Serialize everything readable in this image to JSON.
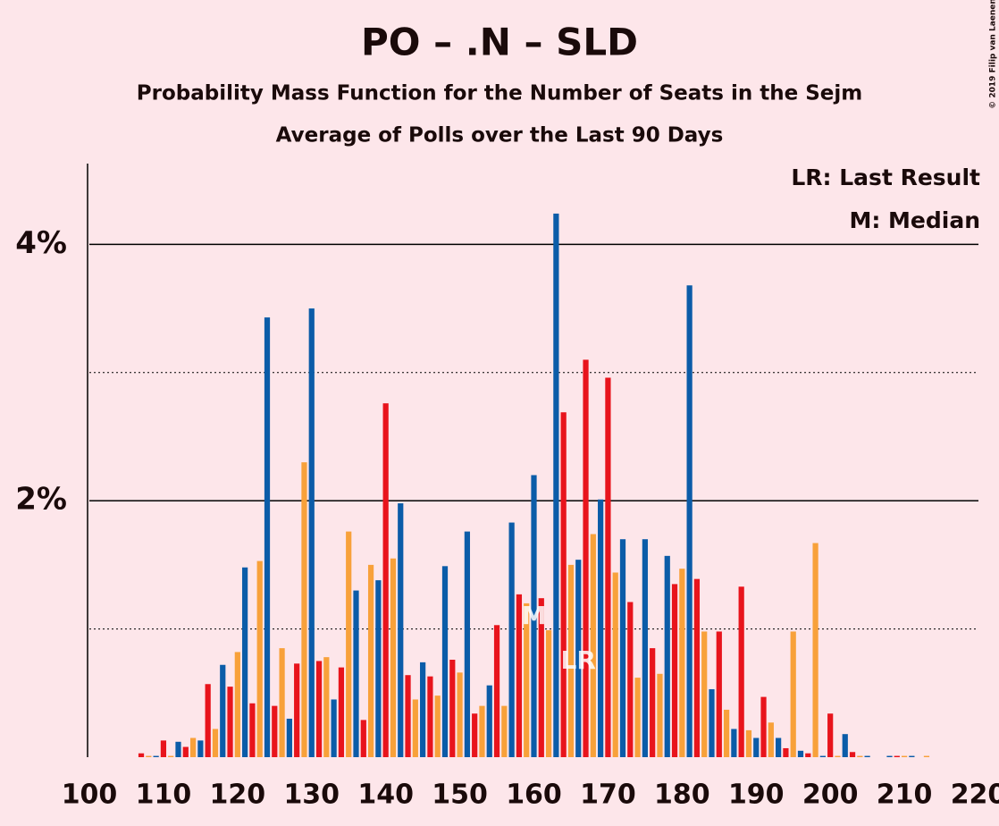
{
  "chart_data": {
    "type": "bar",
    "title": "PO – .N – SLD",
    "subtitle": "Probability Mass Function for the Number of Seats in the Sejm",
    "subtitle2": "Average of Polls over the Last 90 Days",
    "credit": "© 2019 Filip van Laenen",
    "legend_texts": [
      "LR: Last Result",
      "M: Median"
    ],
    "annotations": [
      {
        "text": "M",
        "x": 160
      },
      {
        "text": "LR",
        "x": 166
      }
    ],
    "color_cycle": [
      "#0b5ca8",
      "#e8141c",
      "#f8a13a"
    ],
    "x": [
      100,
      101,
      102,
      103,
      104,
      105,
      106,
      107,
      108,
      109,
      110,
      111,
      112,
      113,
      114,
      115,
      116,
      117,
      118,
      119,
      120,
      121,
      122,
      123,
      124,
      125,
      126,
      127,
      128,
      129,
      130,
      131,
      132,
      133,
      134,
      135,
      136,
      137,
      138,
      139,
      140,
      141,
      142,
      143,
      144,
      145,
      146,
      147,
      148,
      149,
      150,
      151,
      152,
      153,
      154,
      155,
      156,
      157,
      158,
      159,
      160,
      161,
      162,
      163,
      164,
      165,
      166,
      167,
      168,
      169,
      170,
      171,
      172,
      173,
      174,
      175,
      176,
      177,
      178,
      179,
      180,
      181,
      182,
      183,
      184,
      185,
      186,
      187,
      188,
      189,
      190,
      191,
      192,
      193,
      194,
      195,
      196,
      197,
      198,
      199,
      200,
      201,
      202,
      203,
      204,
      205,
      206,
      207,
      208,
      209,
      210,
      211,
      212,
      213,
      214,
      215,
      216,
      217,
      218,
      219,
      220
    ],
    "values": [
      0,
      0,
      0,
      0,
      0,
      0,
      0,
      0.03,
      0.01,
      0.01,
      0.13,
      0.01,
      0.12,
      0.08,
      0.15,
      0.13,
      0.57,
      0.22,
      0.72,
      0.55,
      0.82,
      1.48,
      0.42,
      1.53,
      3.43,
      0.4,
      0.85,
      0.3,
      0.73,
      2.3,
      3.5,
      0.75,
      0.78,
      0.45,
      0.7,
      1.76,
      1.3,
      0.29,
      1.5,
      1.38,
      2.76,
      1.55,
      1.98,
      0.64,
      0.45,
      0.74,
      0.63,
      0.48,
      1.49,
      0.76,
      0.66,
      1.76,
      0.34,
      0.4,
      0.56,
      1.03,
      0.4,
      1.83,
      1.27,
      1.2,
      2.2,
      1.24,
      0.99,
      4.24,
      2.69,
      1.5,
      1.54,
      3.1,
      1.74,
      2.01,
      2.96,
      1.44,
      1.7,
      1.21,
      0.62,
      1.7,
      0.85,
      0.65,
      1.57,
      1.35,
      1.47,
      3.68,
      1.39,
      0.98,
      0.53,
      0.98,
      0.37,
      0.22,
      1.33,
      0.21,
      0.15,
      0.47,
      0.27,
      0.15,
      0.07,
      0.98,
      0.05,
      0.03,
      1.67,
      0.01,
      0.34,
      0.01,
      0.18,
      0.04,
      0.01,
      0.01,
      0,
      0,
      0.01,
      0.01,
      0.01,
      0.01,
      0,
      0.01,
      0,
      0,
      0,
      0,
      0,
      0,
      0
    ],
    "xlim": [
      100,
      220
    ],
    "xticks": [
      100,
      110,
      120,
      130,
      140,
      150,
      160,
      170,
      180,
      190,
      200,
      210,
      220
    ],
    "ylim": [
      0,
      4.63
    ],
    "yticks": [
      {
        "value": 2,
        "label": "2%"
      },
      {
        "value": 4,
        "label": "4%"
      }
    ],
    "minor_yticks": [
      1,
      3
    ],
    "grid": true
  }
}
